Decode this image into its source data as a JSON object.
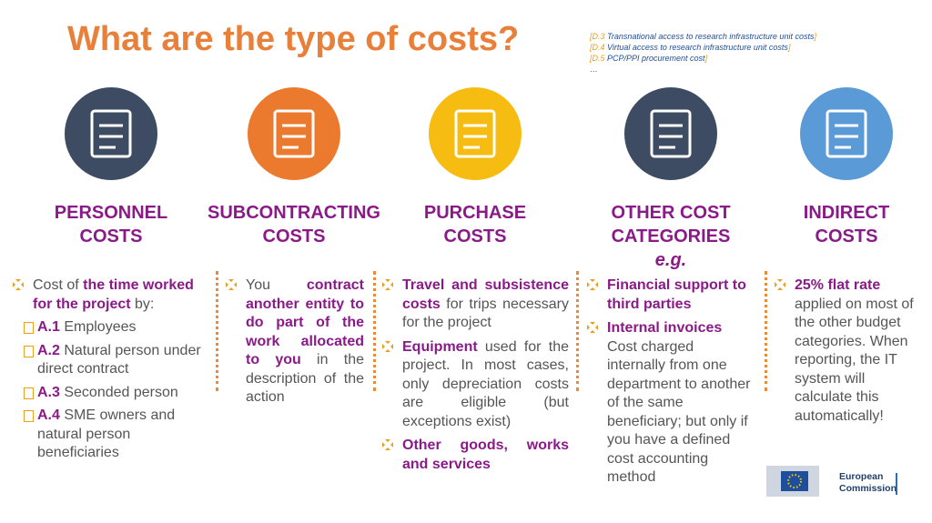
{
  "title": "What are the type of costs?",
  "notes": [
    [
      {
        "text": "[D.3",
        "code": true
      },
      {
        "text": " Transnational access to research infrastructure unit costs"
      },
      {
        "text": "]",
        "code": true
      }
    ],
    [
      {
        "text": "[D.4",
        "code": true
      },
      {
        "text": " Virtual access to research infrastructure unit costs"
      },
      {
        "text": "]",
        "code": true
      }
    ],
    [
      {
        "text": "[D.5",
        "code": true
      },
      {
        "text": " PCP/PPI procurement cost"
      },
      {
        "text": "]",
        "code": true
      }
    ],
    [
      {
        "text": "…"
      }
    ]
  ],
  "columns": [
    {
      "heading": [
        "PERSONNEL",
        "COSTS"
      ],
      "icon_color": "#3d4b63",
      "justify": false,
      "bullets": [
        {
          "segments": [
            {
              "text": "Cost of "
            },
            {
              "text": "the time worked for the project",
              "bold": true
            },
            {
              "text": " by:"
            }
          ],
          "subitems": [
            [
              {
                "text": "A.1",
                "bold": true
              },
              {
                "text": " Employees"
              }
            ],
            [
              {
                "text": "A.2",
                "bold": true
              },
              {
                "text": " Natural person under direct contract"
              }
            ],
            [
              {
                "text": "A.3",
                "bold": true
              },
              {
                "text": " Seconded person"
              }
            ],
            [
              {
                "text": "A.4",
                "bold": true
              },
              {
                "text": " SME owners and natural person beneficiaries"
              }
            ]
          ]
        }
      ]
    },
    {
      "heading": [
        "SUBCONTRACTING",
        "COSTS"
      ],
      "icon_color": "#ec7a2e",
      "justify": true,
      "bullets": [
        {
          "segments": [
            {
              "text": "You "
            },
            {
              "text": "contract another entity to do part of the work allocated to you",
              "bold": true
            },
            {
              "text": " in the description of the action"
            }
          ]
        }
      ]
    },
    {
      "heading": [
        "PURCHASE",
        "COSTS"
      ],
      "icon_color": "#f6bc12",
      "justify": true,
      "bullets": [
        {
          "segments": [
            {
              "text": "Travel and subsistence costs",
              "bold": true
            },
            {
              "text": " for trips necessary for the project"
            }
          ]
        },
        {
          "segments": [
            {
              "text": "Equipment",
              "bold": true
            },
            {
              "text": " used for the project. In most cases, only depreciation costs are eligible (but exceptions exist)"
            }
          ]
        },
        {
          "segments": [
            {
              "text": "Other goods, works and services",
              "bold": true
            }
          ]
        }
      ]
    },
    {
      "heading": [
        "OTHER COST",
        "CATEGORIES"
      ],
      "subheading": "e.g.",
      "icon_color": "#3d4b63",
      "justify": false,
      "bullets": [
        {
          "segments": [
            {
              "text": "Financial support to third parties",
              "bold": true
            }
          ]
        },
        {
          "segments": [
            {
              "text": "Internal invoices",
              "bold": true
            },
            {
              "text": " Cost charged internally from one department to another of the same beneficiary; but only if you have a defined cost accounting method"
            }
          ]
        }
      ]
    },
    {
      "heading": [
        "INDIRECT",
        "COSTS"
      ],
      "icon_color": "#5a9ad6",
      "justify": false,
      "bullets": [
        {
          "segments": [
            {
              "text": "25% flat rate",
              "bold": true
            },
            {
              "text": " applied on most of the other budget categories. When reporting, the IT system will calculate this automatically!"
            }
          ]
        }
      ]
    }
  ],
  "logo": [
    "European",
    "Commission"
  ]
}
